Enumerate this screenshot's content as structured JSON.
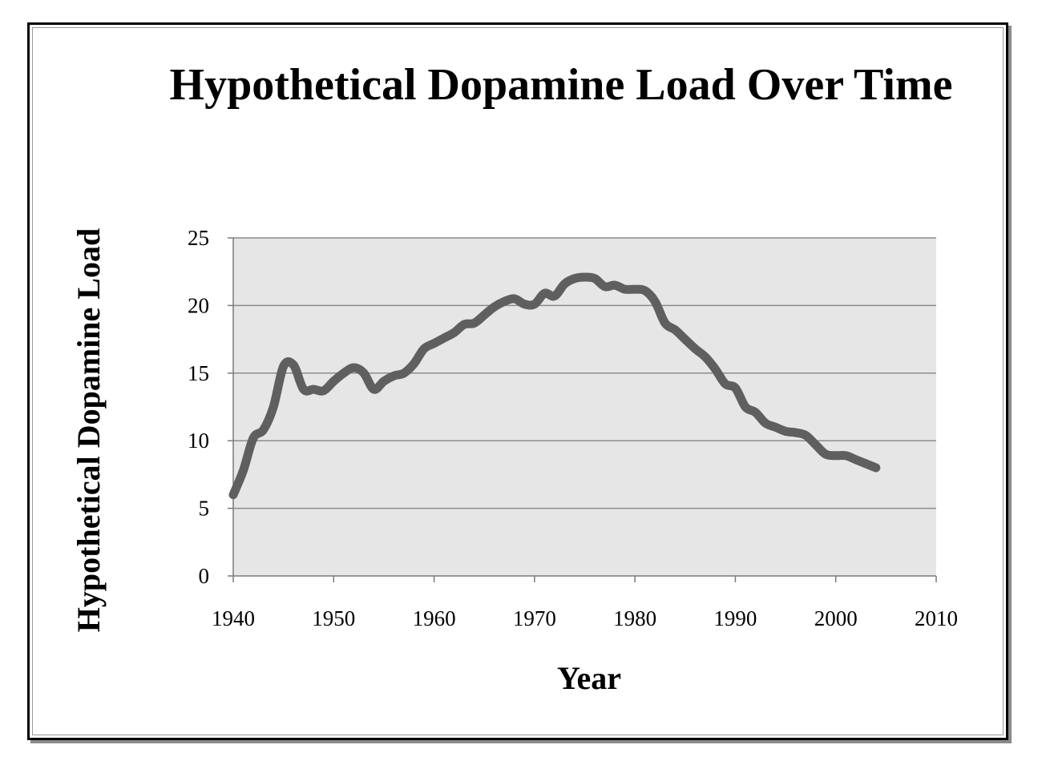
{
  "chart_data": {
    "type": "line",
    "title": "Hypothetical Dopamine Load Over Time",
    "xlabel": "Year",
    "ylabel": "Hypothetical Dopamine Load",
    "xlim": [
      1940,
      2010
    ],
    "ylim": [
      0,
      25
    ],
    "x_ticks": [
      "1940",
      "1950",
      "1960",
      "1970",
      "1980",
      "1990",
      "2000",
      "2010"
    ],
    "y_ticks": [
      "0",
      "5",
      "10",
      "15",
      "20",
      "25"
    ],
    "grid": "horizontal",
    "legend": "none",
    "colors": {
      "line": "#5f5f5f",
      "plot_background": "#e6e6e6",
      "gridline": "#8c8c8c"
    },
    "series": [
      {
        "x": [
          1940,
          1941,
          1942,
          1943,
          1944,
          1945,
          1946,
          1947,
          1948,
          1949,
          1950,
          1951,
          1952,
          1953,
          1954,
          1955,
          1956,
          1957,
          1958,
          1959,
          1960,
          1961,
          1962,
          1963,
          1964,
          1965,
          1966,
          1967,
          1968,
          1969,
          1970,
          1971,
          1972,
          1973,
          1974,
          1975,
          1976,
          1977,
          1978,
          1979,
          1980,
          1981,
          1982,
          1983,
          1984,
          1985,
          1986,
          1987,
          1988,
          1989,
          1990,
          1991,
          1992,
          1993,
          1994,
          1995,
          1996,
          1997,
          1998,
          1999,
          2000,
          2001,
          2002,
          2003,
          2004
        ],
        "values": [
          6.0,
          7.8,
          10.2,
          10.8,
          12.5,
          15.5,
          15.6,
          13.8,
          13.8,
          13.7,
          14.4,
          15.0,
          15.4,
          15.0,
          13.8,
          14.4,
          14.8,
          15.0,
          15.7,
          16.8,
          17.2,
          17.6,
          18.0,
          18.6,
          18.7,
          19.3,
          19.9,
          20.3,
          20.5,
          20.1,
          20.1,
          20.9,
          20.7,
          21.6,
          22.0,
          22.1,
          22.0,
          21.4,
          21.5,
          21.2,
          21.2,
          21.1,
          20.3,
          18.7,
          18.2,
          17.5,
          16.8,
          16.2,
          15.3,
          14.2,
          13.9,
          12.5,
          12.1,
          11.3,
          11.0,
          10.7,
          10.6,
          10.4,
          9.7,
          9.0,
          8.9,
          8.9,
          8.6,
          8.3,
          8.0
        ]
      }
    ]
  }
}
